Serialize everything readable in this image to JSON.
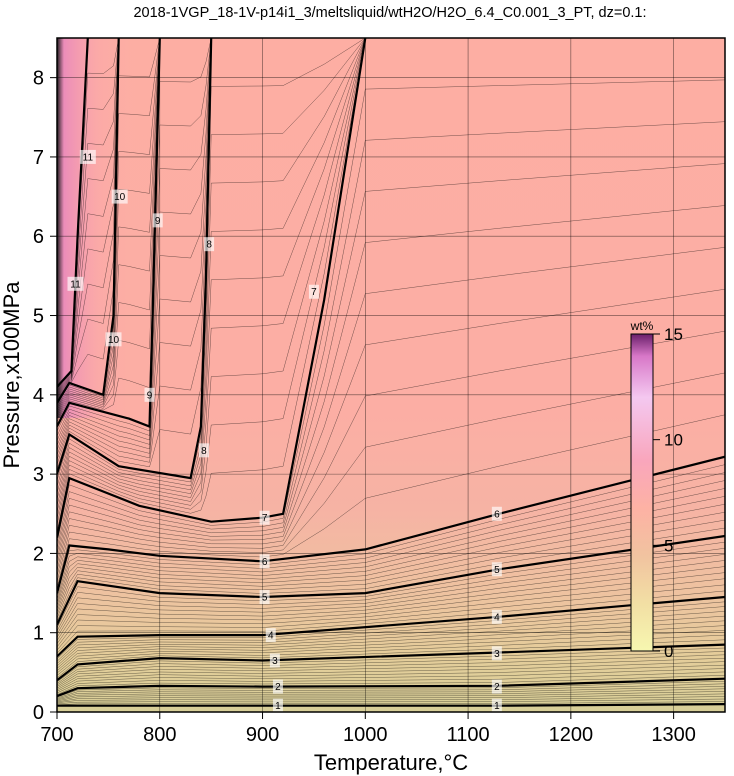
{
  "chart_data": {
    "type": "heatmap",
    "title": "2018-1VGP_18-1V-p14i1_3/meltsliquid/wtH2O/H2O_6.4_C0.001_3_PT, dz=0.1:",
    "xlabel": "Temperature,°C",
    "ylabel": "Pressure,x100MPa",
    "xlim": [
      700,
      1350
    ],
    "ylim": [
      0,
      8.5
    ],
    "x_ticks": [
      700,
      800,
      900,
      1000,
      1100,
      1200,
      1300
    ],
    "y_ticks": [
      0,
      1,
      2,
      3,
      4,
      5,
      6,
      7,
      8
    ],
    "grid": true,
    "colorbar": {
      "unit": "wt%",
      "range": [
        0,
        15
      ],
      "ticks": [
        0,
        5,
        10,
        15
      ],
      "colors": [
        "#f7f7b0",
        "#f0d9a2",
        "#f1bfa0",
        "#fdb0a5",
        "#f9a3be",
        "#e57fd0",
        "#7a2d7a"
      ]
    },
    "contours": [
      {
        "level": 1,
        "points": [
          [
            700,
            0.08
          ],
          [
            900,
            0.08
          ],
          [
            1130,
            0.08
          ],
          [
            1350,
            0.1
          ]
        ]
      },
      {
        "level": 2,
        "points": [
          [
            700,
            0.2
          ],
          [
            720,
            0.3
          ],
          [
            800,
            0.33
          ],
          [
            900,
            0.32
          ],
          [
            1130,
            0.33
          ],
          [
            1350,
            0.42
          ]
        ]
      },
      {
        "level": 3,
        "points": [
          [
            700,
            0.4
          ],
          [
            720,
            0.6
          ],
          [
            800,
            0.68
          ],
          [
            900,
            0.65
          ],
          [
            1130,
            0.75
          ],
          [
            1350,
            0.85
          ]
        ]
      },
      {
        "level": 4,
        "points": [
          [
            700,
            0.7
          ],
          [
            720,
            0.95
          ],
          [
            800,
            0.97
          ],
          [
            900,
            0.97
          ],
          [
            1130,
            1.2
          ],
          [
            1350,
            1.45
          ]
        ]
      },
      {
        "level": 5,
        "points": [
          [
            700,
            1.1
          ],
          [
            720,
            1.65
          ],
          [
            800,
            1.5
          ],
          [
            900,
            1.45
          ],
          [
            1000,
            1.5
          ],
          [
            1130,
            1.8
          ],
          [
            1350,
            2.22
          ]
        ]
      },
      {
        "level": 6,
        "points": [
          [
            700,
            1.5
          ],
          [
            712,
            2.1
          ],
          [
            750,
            2.05
          ],
          [
            800,
            1.97
          ],
          [
            900,
            1.9
          ],
          [
            1000,
            2.05
          ],
          [
            1130,
            2.5
          ],
          [
            1350,
            3.22
          ]
        ]
      },
      {
        "level": 7,
        "points": [
          [
            700,
            2.2
          ],
          [
            712,
            2.95
          ],
          [
            780,
            2.6
          ],
          [
            850,
            2.4
          ],
          [
            900,
            2.45
          ],
          [
            920,
            2.5
          ],
          [
            960,
            5.2
          ],
          [
            1000,
            8.5
          ]
        ]
      },
      {
        "level": 8,
        "points": [
          [
            700,
            3.0
          ],
          [
            712,
            3.5
          ],
          [
            760,
            3.1
          ],
          [
            830,
            2.95
          ],
          [
            840,
            3.6
          ],
          [
            845,
            5.5
          ],
          [
            850,
            8.5
          ]
        ]
      },
      {
        "level": 9,
        "points": [
          [
            700,
            3.6
          ],
          [
            712,
            3.9
          ],
          [
            770,
            3.7
          ],
          [
            790,
            3.6
          ],
          [
            793,
            5.0
          ],
          [
            800,
            8.5
          ]
        ]
      },
      {
        "level": 10,
        "points": [
          [
            700,
            3.9
          ],
          [
            712,
            4.15
          ],
          [
            745,
            4.0
          ],
          [
            755,
            5.0
          ],
          [
            760,
            8.5
          ]
        ]
      },
      {
        "level": 11,
        "points": [
          [
            700,
            4.1
          ],
          [
            714,
            4.3
          ],
          [
            720,
            6.0
          ],
          [
            730,
            8.5
          ]
        ]
      }
    ],
    "contour_labels": [
      {
        "text": "1",
        "x": 915,
        "y": 0.08
      },
      {
        "text": "1",
        "x": 1128,
        "y": 0.08
      },
      {
        "text": "2",
        "x": 915,
        "y": 0.32
      },
      {
        "text": "2",
        "x": 1128,
        "y": 0.32
      },
      {
        "text": "3",
        "x": 912,
        "y": 0.65
      },
      {
        "text": "3",
        "x": 1128,
        "y": 0.74
      },
      {
        "text": "4",
        "x": 908,
        "y": 0.97
      },
      {
        "text": "4",
        "x": 1128,
        "y": 1.2
      },
      {
        "text": "5",
        "x": 902,
        "y": 1.45
      },
      {
        "text": "5",
        "x": 1128,
        "y": 1.8
      },
      {
        "text": "6",
        "x": 902,
        "y": 1.9
      },
      {
        "text": "6",
        "x": 1128,
        "y": 2.5
      },
      {
        "text": "7",
        "x": 902,
        "y": 2.45
      },
      {
        "text": "7",
        "x": 950,
        "y": 5.3
      },
      {
        "text": "8",
        "x": 843,
        "y": 3.3
      },
      {
        "text": "8",
        "x": 848,
        "y": 5.9
      },
      {
        "text": "9",
        "x": 790,
        "y": 4.0
      },
      {
        "text": "9",
        "x": 798,
        "y": 6.2
      },
      {
        "text": "10",
        "x": 755,
        "y": 4.7
      },
      {
        "text": "10",
        "x": 761,
        "y": 6.5
      },
      {
        "text": "11",
        "x": 718,
        "y": 5.4
      },
      {
        "text": "11",
        "x": 730,
        "y": 7.0
      }
    ]
  }
}
